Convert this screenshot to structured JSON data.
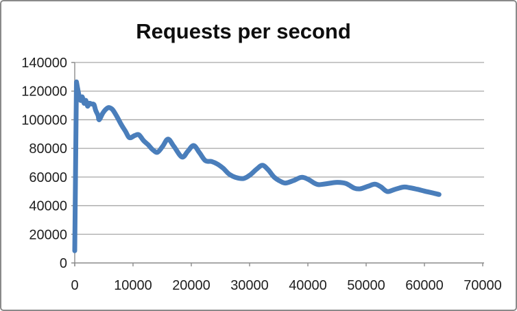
{
  "chart_data": {
    "type": "line",
    "title": "Requests per second",
    "xlabel": "",
    "ylabel": "",
    "xlim": [
      0,
      70000
    ],
    "ylim": [
      0,
      140000
    ],
    "x_ticks": [
      0,
      10000,
      20000,
      30000,
      40000,
      50000,
      60000,
      70000
    ],
    "y_ticks": [
      0,
      20000,
      40000,
      60000,
      80000,
      100000,
      120000,
      140000
    ],
    "grid": "horizontal",
    "legend": "none",
    "colors": {
      "grid": "#a6a6a6",
      "axis": "#8c8c8c",
      "text": "#1f1f1f",
      "title": "#0e0e0e",
      "frame_border": "#8a8a8a"
    },
    "series": [
      {
        "name": "Requests per second",
        "color": "#4a7ebb",
        "points": [
          [
            0,
            8500
          ],
          [
            300,
            126500
          ],
          [
            700,
            117500
          ],
          [
            1000,
            113500
          ],
          [
            1300,
            116000
          ],
          [
            1600,
            111500
          ],
          [
            1900,
            113500
          ],
          [
            2200,
            109500
          ],
          [
            2500,
            111500
          ],
          [
            2900,
            111000
          ],
          [
            3300,
            110500
          ],
          [
            3600,
            106500
          ],
          [
            4000,
            103000
          ],
          [
            4200,
            100000
          ],
          [
            4800,
            104500
          ],
          [
            5400,
            107500
          ],
          [
            5900,
            108500
          ],
          [
            6500,
            107000
          ],
          [
            7200,
            102500
          ],
          [
            8000,
            96500
          ],
          [
            8700,
            92000
          ],
          [
            9400,
            87500
          ],
          [
            10300,
            89000
          ],
          [
            11000,
            89500
          ],
          [
            11800,
            85500
          ],
          [
            12600,
            82500
          ],
          [
            13400,
            79000
          ],
          [
            14200,
            77300
          ],
          [
            15100,
            81500
          ],
          [
            16000,
            86500
          ],
          [
            17000,
            81500
          ],
          [
            18400,
            74000
          ],
          [
            19400,
            78000
          ],
          [
            20400,
            82000
          ],
          [
            21400,
            77000
          ],
          [
            22400,
            71500
          ],
          [
            23500,
            70800
          ],
          [
            24500,
            69000
          ],
          [
            25500,
            66000
          ],
          [
            26500,
            62000
          ],
          [
            27800,
            59500
          ],
          [
            29000,
            59000
          ],
          [
            30100,
            61500
          ],
          [
            31200,
            65500
          ],
          [
            32200,
            68200
          ],
          [
            33200,
            65000
          ],
          [
            34200,
            60000
          ],
          [
            35300,
            57000
          ],
          [
            36200,
            55800
          ],
          [
            37500,
            57500
          ],
          [
            38900,
            59800
          ],
          [
            40000,
            58500
          ],
          [
            41000,
            56000
          ],
          [
            41800,
            54700
          ],
          [
            43000,
            55200
          ],
          [
            45000,
            56300
          ],
          [
            46500,
            55500
          ],
          [
            48000,
            52200
          ],
          [
            49000,
            51800
          ],
          [
            50300,
            53500
          ],
          [
            51500,
            55000
          ],
          [
            52500,
            53200
          ],
          [
            53600,
            49900
          ],
          [
            54800,
            51200
          ],
          [
            56400,
            53000
          ],
          [
            57500,
            52500
          ],
          [
            58700,
            51500
          ],
          [
            60000,
            50200
          ],
          [
            61300,
            49000
          ],
          [
            62500,
            47800
          ]
        ]
      }
    ]
  }
}
